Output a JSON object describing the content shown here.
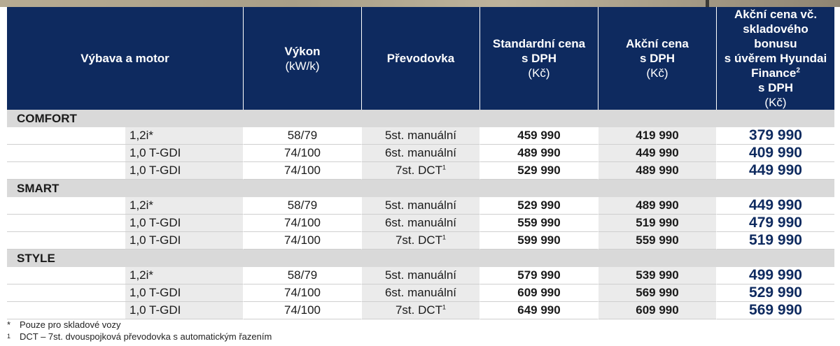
{
  "header": {
    "col_model": "Výbava a motor",
    "col_power": "Výkon",
    "col_power_unit": "(kW/k)",
    "col_gearbox": "Převodovka",
    "col_standard": "Standardní cena",
    "col_standard_vat": "s DPH",
    "col_standard_unit": "(Kč)",
    "col_promo": "Akční cena",
    "col_promo_vat": "s DPH",
    "col_promo_unit": "(Kč)",
    "col_finance_l1": "Akční cena vč.",
    "col_finance_l2": "skladového bonusu",
    "col_finance_l3": "s úvěrem Hyundai",
    "col_finance_l4": "Finance",
    "col_finance_sup": "2",
    "col_finance_vat": "s DPH",
    "col_finance_unit": "(Kč)"
  },
  "groups": [
    {
      "name": "COMFORT",
      "rows": [
        {
          "engine": "1,2i*",
          "power": "58/79",
          "gearbox": "5st. manuální",
          "sup": "",
          "standard": "459 990",
          "promo": "419 990",
          "finance": "379 990"
        },
        {
          "engine": "1,0 T-GDI",
          "power": "74/100",
          "gearbox": "6st. manuální",
          "sup": "",
          "standard": "489 990",
          "promo": "449 990",
          "finance": "409 990"
        },
        {
          "engine": "1,0 T-GDI",
          "power": "74/100",
          "gearbox": "7st. DCT",
          "sup": "1",
          "standard": "529 990",
          "promo": "489 990",
          "finance": "449 990"
        }
      ]
    },
    {
      "name": "SMART",
      "rows": [
        {
          "engine": "1,2i*",
          "power": "58/79",
          "gearbox": "5st. manuální",
          "sup": "",
          "standard": "529 990",
          "promo": "489 990",
          "finance": "449 990"
        },
        {
          "engine": "1,0 T-GDI",
          "power": "74/100",
          "gearbox": "6st. manuální",
          "sup": "",
          "standard": "559 990",
          "promo": "519 990",
          "finance": "479 990"
        },
        {
          "engine": "1,0 T-GDI",
          "power": "74/100",
          "gearbox": "7st. DCT",
          "sup": "1",
          "standard": "599 990",
          "promo": "559 990",
          "finance": "519 990"
        }
      ]
    },
    {
      "name": "STYLE",
      "rows": [
        {
          "engine": "1,2i*",
          "power": "58/79",
          "gearbox": "5st. manuální",
          "sup": "",
          "standard": "579 990",
          "promo": "539 990",
          "finance": "499 990"
        },
        {
          "engine": "1,0 T-GDI",
          "power": "74/100",
          "gearbox": "6st. manuální",
          "sup": "",
          "standard": "609 990",
          "promo": "569 990",
          "finance": "529 990"
        },
        {
          "engine": "1,0 T-GDI",
          "power": "74/100",
          "gearbox": "7st. DCT",
          "sup": "1",
          "standard": "649 990",
          "promo": "609 990",
          "finance": "569 990"
        }
      ]
    }
  ],
  "footnotes": [
    {
      "mark": "*",
      "text": "Pouze pro skladové vozy"
    },
    {
      "mark": "1",
      "text": "DCT – 7st. dvouspojková převodovka s automatickým řazením"
    }
  ],
  "colors": {
    "header_bg": "#0e2a5f",
    "group_bg": "#d9d9d9",
    "cell_shade": "#ebebeb",
    "finance_text": "#0e2a5f"
  }
}
